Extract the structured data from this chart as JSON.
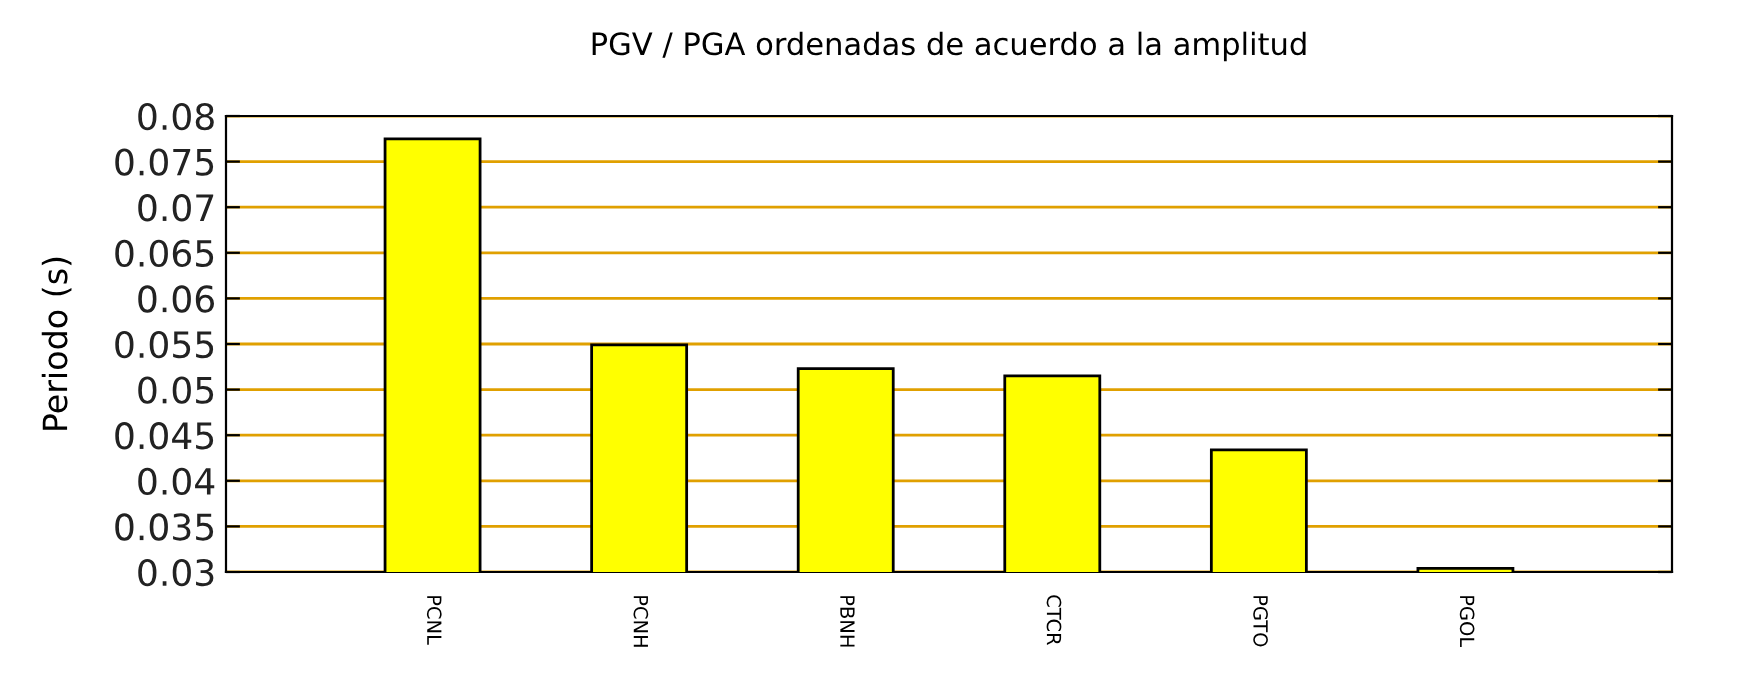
{
  "chart_data": {
    "type": "bar",
    "title": "PGV / PGA ordenadas de acuerdo a la amplitud",
    "ylabel": "Periodo (s)",
    "categories": [
      "PCNL",
      "PCNH",
      "PBNH",
      "CTCR",
      "PGTO",
      "PGOL"
    ],
    "values": [
      0.0775,
      0.0549,
      0.0523,
      0.0515,
      0.0434,
      0.0304
    ],
    "color": "#ffff00",
    "ylim": [
      0.03,
      0.08
    ],
    "yticks": [
      0.03,
      0.035,
      0.04,
      0.045,
      0.05,
      0.055,
      0.06,
      0.065,
      0.07,
      0.075,
      0.08
    ],
    "grid": "y"
  }
}
